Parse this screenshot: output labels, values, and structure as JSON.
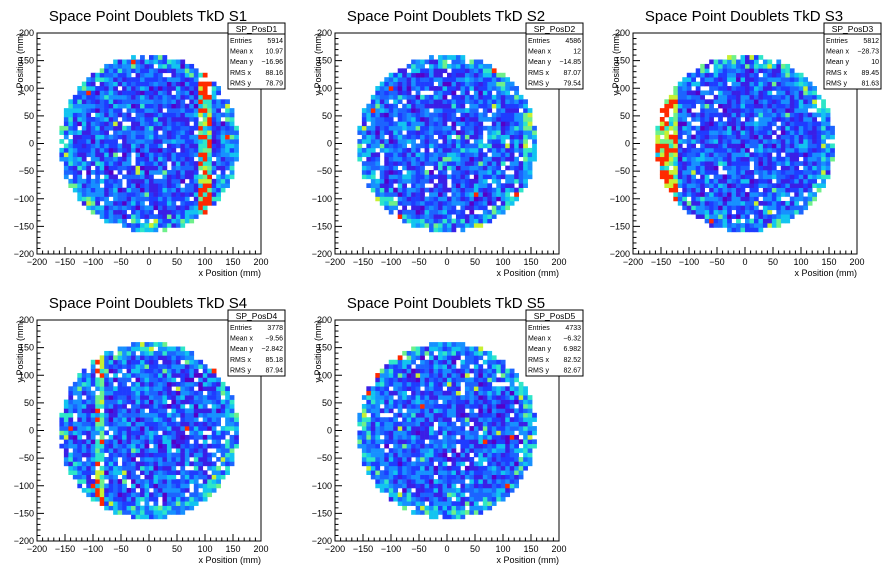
{
  "colors": {
    "frame": "#000000",
    "palette": [
      "#5500c8",
      "#3a1fe6",
      "#1f3cff",
      "#1c64ff",
      "#1790ff",
      "#12c4f0",
      "#2ee6c8",
      "#6ef08a",
      "#c8f032",
      "#ff2a00"
    ]
  },
  "axis_ticks": [
    "−200",
    "−150",
    "−100",
    "−50",
    "0",
    "50",
    "100",
    "150",
    "200"
  ],
  "stat_labels": [
    "Entries",
    "Mean x",
    "Mean y",
    "RMS x",
    "RMS y"
  ],
  "chart_data": [
    {
      "type": "heatmap",
      "title": "Space Point Doublets TkD S1",
      "xlabel": "x Position (mm)",
      "ylabel": "y Position (mm)",
      "xlim": [
        -200,
        200
      ],
      "ylim": [
        -200,
        200
      ],
      "stats": {
        "name": "SP_PosD1",
        "values": [
          "5914",
          "10.97",
          "−16.96",
          "88.16",
          "78.79"
        ]
      },
      "features": {
        "band_x": 100
      }
    },
    {
      "type": "heatmap",
      "title": "Space Point Doublets TkD S2",
      "xlabel": "x Position (mm)",
      "ylabel": "y Position (mm)",
      "xlim": [
        -200,
        200
      ],
      "ylim": [
        -200,
        200
      ],
      "stats": {
        "name": "SP_PosD2",
        "values": [
          "4586",
          "12",
          "−14.85",
          "87.07",
          "79.54"
        ]
      },
      "features": {
        "diag": true
      }
    },
    {
      "type": "heatmap",
      "title": "Space Point Doublets TkD S3",
      "xlabel": "x Position (mm)",
      "ylabel": "y Position (mm)",
      "xlim": [
        -200,
        200
      ],
      "ylim": [
        -200,
        200
      ],
      "stats": {
        "name": "SP_PosD3",
        "values": [
          "5812",
          "−28.73",
          "10",
          "89.45",
          "81.63"
        ]
      },
      "features": {
        "left_edge": true
      }
    },
    {
      "type": "heatmap",
      "title": "Space Point Doublets TkD S4",
      "xlabel": "x Position (mm)",
      "ylabel": "y Position (mm)",
      "xlim": [
        -200,
        200
      ],
      "ylim": [
        -200,
        200
      ],
      "stats": {
        "name": "SP_PosD4",
        "values": [
          "3778",
          "−9.56",
          "−2.842",
          "85.18",
          "87.94"
        ]
      },
      "features": {
        "band_x": -90
      }
    },
    {
      "type": "heatmap",
      "title": "Space Point Doublets TkD S5",
      "xlabel": "x Position (mm)",
      "ylabel": "y Position (mm)",
      "xlim": [
        -200,
        200
      ],
      "ylim": [
        -200,
        200
      ],
      "stats": {
        "name": "SP_PosD5",
        "values": [
          "4733",
          "−6.32",
          "6.982",
          "82.52",
          "82.67"
        ]
      },
      "features": {}
    }
  ]
}
